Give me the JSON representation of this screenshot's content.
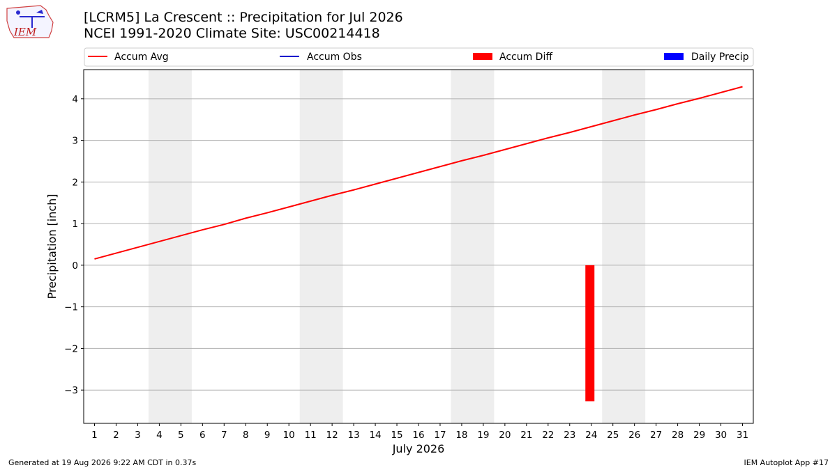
{
  "header": {
    "logo_text": "IEM",
    "title_line1": "[LCRM5] La Crescent :: Precipitation for Jul 2026",
    "title_line2": "NCEI 1991-2020 Climate Site: USC00214418"
  },
  "footer": {
    "generated": "Generated at 19 Aug 2026 9:22 AM CDT in 0.37s",
    "app": "IEM Autoplot App #17"
  },
  "colors": {
    "accum_avg": "#ff0000",
    "accum_obs": "#0000cc",
    "accum_diff": "#ff0000",
    "daily_precip": "#0000ff",
    "weekend_shade": "#eeeeee",
    "grid": "#b0b0b0"
  },
  "chart_data": {
    "type": "line",
    "xlabel": "July 2026",
    "ylabel": "Precipitation [inch]",
    "xlim": [
      0.5,
      31.5
    ],
    "ylim": [
      -3.8,
      4.7
    ],
    "x_ticks": [
      1,
      2,
      3,
      4,
      5,
      6,
      7,
      8,
      9,
      10,
      11,
      12,
      13,
      14,
      15,
      16,
      17,
      18,
      19,
      20,
      21,
      22,
      23,
      24,
      25,
      26,
      27,
      28,
      29,
      30,
      31
    ],
    "y_ticks": [
      {
        "value": 4,
        "label": "4"
      },
      {
        "value": 3,
        "label": "3"
      },
      {
        "value": 2,
        "label": "2"
      },
      {
        "value": 1,
        "label": "1"
      },
      {
        "value": 0,
        "label": "0"
      },
      {
        "value": -1,
        "label": "−1"
      },
      {
        "value": -2,
        "label": "−2"
      },
      {
        "value": -3,
        "label": "−3"
      }
    ],
    "grid": "horizontal",
    "legend": {
      "position": "top",
      "entries": [
        {
          "label": "Accum Avg",
          "kind": "line",
          "color": "#ff0000"
        },
        {
          "label": "Accum Obs",
          "kind": "line",
          "color": "#0000cc"
        },
        {
          "label": "Accum Diff",
          "kind": "bar",
          "color": "#ff0000"
        },
        {
          "label": "Daily Precip",
          "kind": "bar",
          "color": "#0000ff"
        }
      ]
    },
    "weekend_days": [
      [
        4,
        5
      ],
      [
        11,
        12
      ],
      [
        18,
        19
      ],
      [
        25,
        26
      ]
    ],
    "series": [
      {
        "name": "Accum Avg",
        "x": [
          1,
          2,
          3,
          4,
          5,
          6,
          7,
          8,
          9,
          10,
          11,
          12,
          13,
          14,
          15,
          16,
          17,
          18,
          19,
          20,
          21,
          22,
          23,
          24,
          25,
          26,
          27,
          28,
          29,
          30,
          31
        ],
        "values": [
          0.15,
          0.29,
          0.43,
          0.57,
          0.71,
          0.85,
          0.98,
          1.13,
          1.26,
          1.4,
          1.54,
          1.68,
          1.81,
          1.95,
          2.09,
          2.23,
          2.37,
          2.51,
          2.64,
          2.78,
          2.92,
          3.06,
          3.19,
          3.33,
          3.47,
          3.61,
          3.74,
          3.88,
          4.01,
          4.15,
          4.29
        ]
      },
      {
        "name": "Accum Diff",
        "type": "bar",
        "x": [
          24
        ],
        "values": [
          -3.27
        ]
      }
    ]
  }
}
